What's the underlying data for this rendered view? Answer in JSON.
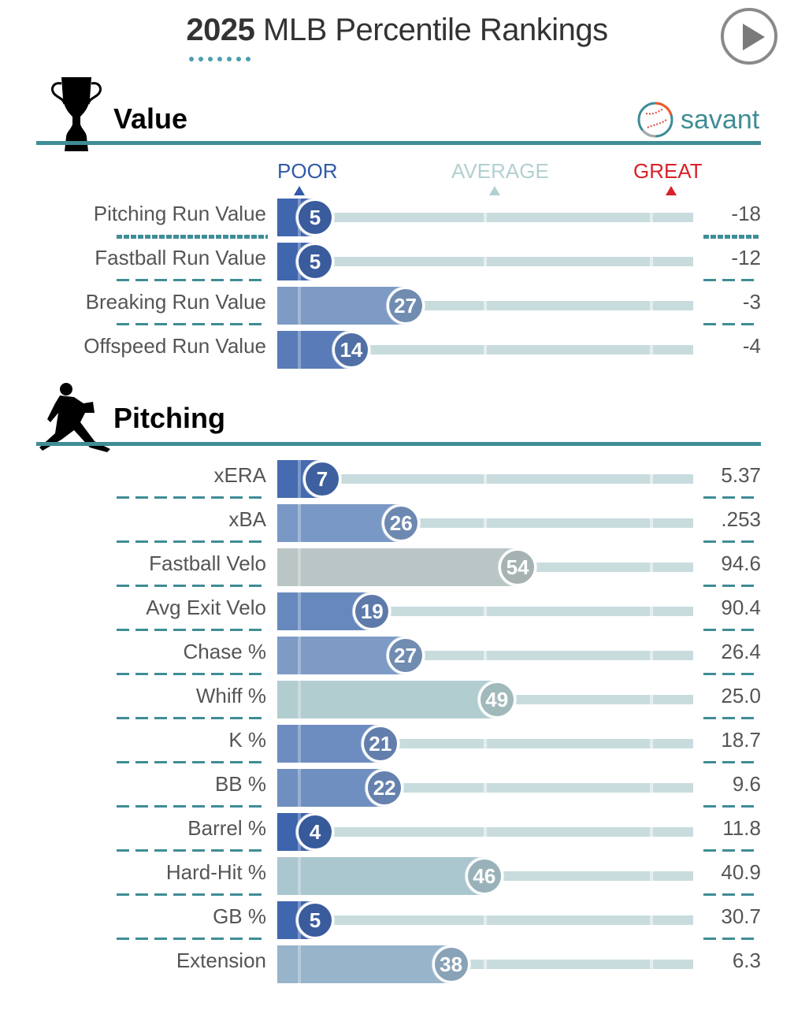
{
  "header": {
    "title_year": "2025",
    "title_rest": "MLB Percentile Rankings",
    "play_button": "play-icon"
  },
  "value_section": {
    "title": "Value",
    "icon": "trophy-icon",
    "brand": "savant",
    "brand_icon": "baseball-icon"
  },
  "legend": {
    "poor": "POOR",
    "average": "AVERAGE",
    "great": "GREAT",
    "colors": {
      "poor": "#325aa8",
      "average": "#b4cfd1",
      "great": "#d82129"
    }
  },
  "pitching_section": {
    "title": "Pitching",
    "icon": "pitcher-icon"
  },
  "chart_data": {
    "type": "bar",
    "title": "2025 MLB Percentile Rankings",
    "xlabel": "Percentile",
    "xlim": [
      0,
      100
    ],
    "scale_labels": [
      "POOR",
      "AVERAGE",
      "GREAT"
    ],
    "groups": [
      {
        "name": "Value",
        "rows": [
          {
            "metric": "Pitching Run Value",
            "percentile": 5,
            "value": "-18"
          },
          {
            "metric": "Fastball Run Value",
            "percentile": 5,
            "value": "-12"
          },
          {
            "metric": "Breaking Run Value",
            "percentile": 27,
            "value": "-3"
          },
          {
            "metric": "Offspeed Run Value",
            "percentile": 14,
            "value": "-4"
          }
        ]
      },
      {
        "name": "Pitching",
        "rows": [
          {
            "metric": "xERA",
            "percentile": 7,
            "value": "5.37"
          },
          {
            "metric": "xBA",
            "percentile": 26,
            "value": ".253"
          },
          {
            "metric": "Fastball Velo",
            "percentile": 54,
            "value": "94.6"
          },
          {
            "metric": "Avg Exit Velo",
            "percentile": 19,
            "value": "90.4"
          },
          {
            "metric": "Chase %",
            "percentile": 27,
            "value": "26.4"
          },
          {
            "metric": "Whiff %",
            "percentile": 49,
            "value": "25.0"
          },
          {
            "metric": "K %",
            "percentile": 21,
            "value": "18.7"
          },
          {
            "metric": "BB %",
            "percentile": 22,
            "value": "9.6"
          },
          {
            "metric": "Barrel %",
            "percentile": 4,
            "value": "11.8"
          },
          {
            "metric": "Hard-Hit %",
            "percentile": 46,
            "value": "40.9"
          },
          {
            "metric": "GB %",
            "percentile": 5,
            "value": "30.7"
          },
          {
            "metric": "Extension",
            "percentile": 38,
            "value": "6.3"
          }
        ]
      }
    ]
  }
}
